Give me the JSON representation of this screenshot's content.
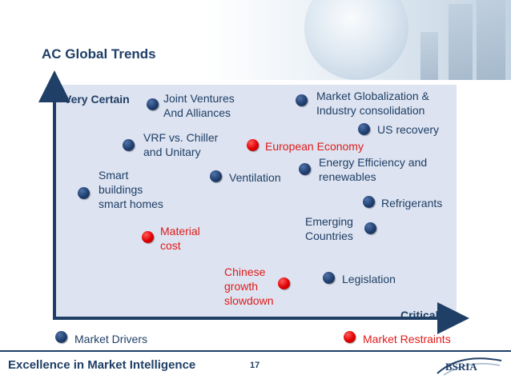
{
  "slide": {
    "title": "AC Global Trends",
    "page_number": "17"
  },
  "axes": {
    "y_label": "Very Certain",
    "x_label": "Critical"
  },
  "trends": [
    {
      "label": "Joint Ventures\nAnd Alliances",
      "category": "driver"
    },
    {
      "label": "Market Globalization &\nIndustry  consolidation",
      "category": "driver"
    },
    {
      "label": "US recovery",
      "category": "driver"
    },
    {
      "label": "VRF vs. Chiller\nand Unitary",
      "category": "driver"
    },
    {
      "label": "European Economy",
      "category": "restraint"
    },
    {
      "label": "Energy Efficiency and\nrenewables",
      "category": "driver"
    },
    {
      "label": "Ventilation",
      "category": "driver"
    },
    {
      "label": "Smart\nbuildings\nsmart homes",
      "category": "driver"
    },
    {
      "label": "Refrigerants",
      "category": "driver"
    },
    {
      "label": "Emerging\nCountries",
      "category": "driver"
    },
    {
      "label": "Material\ncost",
      "category": "restraint"
    },
    {
      "label": "Legislation",
      "category": "driver"
    },
    {
      "label": "Chinese\ngrowth\nslowdown",
      "category": "restraint"
    }
  ],
  "legend": {
    "drivers": "Market Drivers",
    "restraints": "Market Restraints"
  },
  "footer": {
    "tagline": "Excellence in Market Intelligence",
    "logo_text": "BSRIA"
  },
  "colors": {
    "text": "#1f3f66",
    "restraint": "#e01b1b",
    "driver_dot": "#203f70",
    "plot_bg": "#dde3f0"
  }
}
